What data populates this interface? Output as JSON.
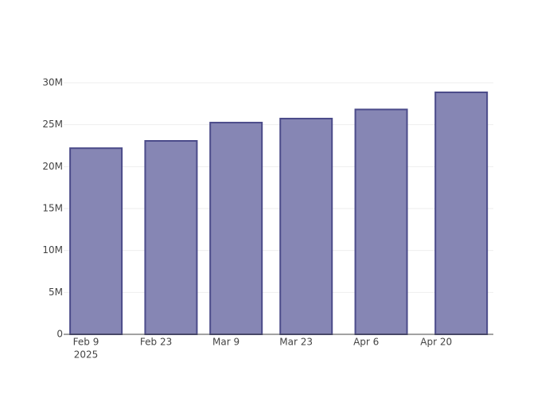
{
  "chart_data": {
    "type": "bar",
    "x": [
      "2025-02-11",
      "2025-02-26",
      "2025-03-11",
      "2025-03-25",
      "2025-04-09",
      "2025-04-25"
    ],
    "values": [
      22200000,
      23070000,
      25250000,
      25730000,
      26820000,
      28860000
    ],
    "color": "#7f7fb0",
    "edge_color": "#4b4b8a",
    "xlim": [
      "2025-02-04T13:00:00Z",
      "2025-05-01T10:00:00Z"
    ],
    "xticks": [
      {
        "value": "2025-02-09",
        "label": "Feb 9"
      },
      {
        "value": "2025-02-23",
        "label": "Feb 23"
      },
      {
        "value": "2025-03-09",
        "label": "Mar 9"
      },
      {
        "value": "2025-03-23",
        "label": "Mar 23"
      },
      {
        "value": "2025-04-06",
        "label": "Apr 6"
      },
      {
        "value": "2025-04-20",
        "label": "Apr 20"
      }
    ],
    "x_year_label": "2025",
    "ylim": [
      0,
      30380000
    ],
    "yticks": [
      0,
      {
        "value": 5000000,
        "label": "5M"
      },
      {
        "value": 10000000,
        "label": "10M"
      },
      {
        "value": 15000000,
        "label": "15M"
      },
      {
        "value": 20000000,
        "label": "20M"
      },
      {
        "value": 25000000,
        "label": "25M"
      },
      {
        "value": 30000000,
        "label": "30M"
      }
    ],
    "grid": true
  }
}
